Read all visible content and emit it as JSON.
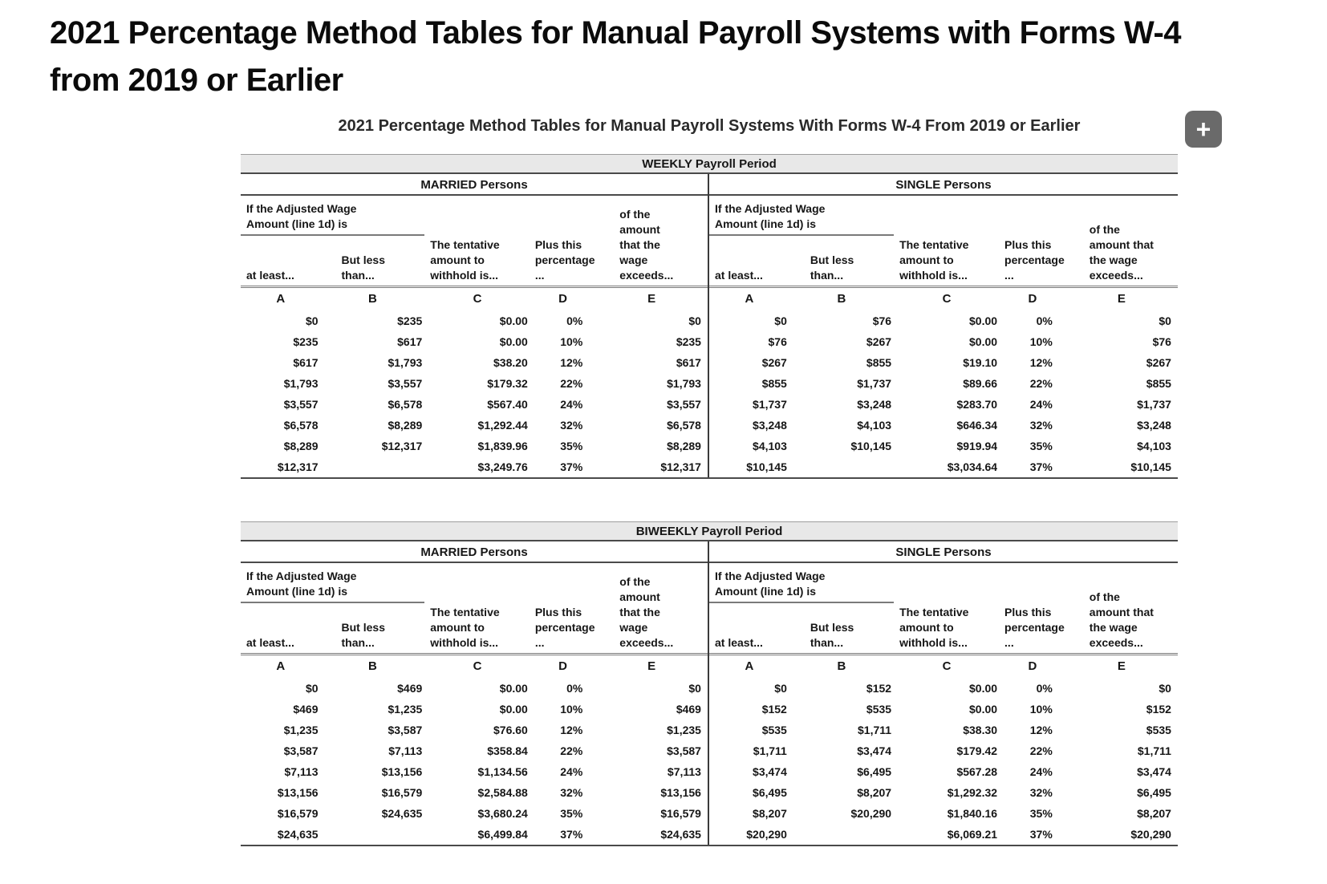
{
  "page": {
    "title_line1": "2021 Percentage Method Tables for Manual Payroll Systems with Forms W-4",
    "title_line2": "from 2019 or Earlier"
  },
  "figure": {
    "caption": "2021 Percentage Method Tables for Manual Payroll Systems With Forms W-4 From 2019 or Earlier",
    "zoom_button_glyph": "+"
  },
  "table_labels": {
    "wage_header": "If the Adjusted Wage\nAmount (line 1d) is",
    "col_a": "at least...",
    "col_b": "But less\nthan...",
    "col_c": "The tentative\namount to\nwithhold is...",
    "col_d": "Plus this\npercentage\n...",
    "col_e_married": "of the\namount\nthat the\nwage\nexceeds...",
    "col_e_single": "of the\namount that\nthe wage\nexceeds...",
    "letters": [
      "A",
      "B",
      "C",
      "D",
      "E"
    ]
  },
  "colors": {
    "band_bg": "#e8e8e8",
    "rule_dark": "#4a4a4a",
    "rule_mid": "#7a7a7a",
    "zoom_button_bg": "#6a6a6a",
    "text": "#161616"
  },
  "tables": [
    {
      "period": "WEEKLY Payroll Period",
      "married": {
        "label": "MARRIED Persons",
        "rows": [
          [
            "$0",
            "$235",
            "$0.00",
            "0%",
            "$0"
          ],
          [
            "$235",
            "$617",
            "$0.00",
            "10%",
            "$235"
          ],
          [
            "$617",
            "$1,793",
            "$38.20",
            "12%",
            "$617"
          ],
          [
            "$1,793",
            "$3,557",
            "$179.32",
            "22%",
            "$1,793"
          ],
          [
            "$3,557",
            "$6,578",
            "$567.40",
            "24%",
            "$3,557"
          ],
          [
            "$6,578",
            "$8,289",
            "$1,292.44",
            "32%",
            "$6,578"
          ],
          [
            "$8,289",
            "$12,317",
            "$1,839.96",
            "35%",
            "$8,289"
          ],
          [
            "$12,317",
            "",
            "$3,249.76",
            "37%",
            "$12,317"
          ]
        ]
      },
      "single": {
        "label": "SINGLE Persons",
        "rows": [
          [
            "$0",
            "$76",
            "$0.00",
            "0%",
            "$0"
          ],
          [
            "$76",
            "$267",
            "$0.00",
            "10%",
            "$76"
          ],
          [
            "$267",
            "$855",
            "$19.10",
            "12%",
            "$267"
          ],
          [
            "$855",
            "$1,737",
            "$89.66",
            "22%",
            "$855"
          ],
          [
            "$1,737",
            "$3,248",
            "$283.70",
            "24%",
            "$1,737"
          ],
          [
            "$3,248",
            "$4,103",
            "$646.34",
            "32%",
            "$3,248"
          ],
          [
            "$4,103",
            "$10,145",
            "$919.94",
            "35%",
            "$4,103"
          ],
          [
            "$10,145",
            "",
            "$3,034.64",
            "37%",
            "$10,145"
          ]
        ]
      }
    },
    {
      "period": "BIWEEKLY Payroll Period",
      "married": {
        "label": "MARRIED Persons",
        "rows": [
          [
            "$0",
            "$469",
            "$0.00",
            "0%",
            "$0"
          ],
          [
            "$469",
            "$1,235",
            "$0.00",
            "10%",
            "$469"
          ],
          [
            "$1,235",
            "$3,587",
            "$76.60",
            "12%",
            "$1,235"
          ],
          [
            "$3,587",
            "$7,113",
            "$358.84",
            "22%",
            "$3,587"
          ],
          [
            "$7,113",
            "$13,156",
            "$1,134.56",
            "24%",
            "$7,113"
          ],
          [
            "$13,156",
            "$16,579",
            "$2,584.88",
            "32%",
            "$13,156"
          ],
          [
            "$16,579",
            "$24,635",
            "$3,680.24",
            "35%",
            "$16,579"
          ],
          [
            "$24,635",
            "",
            "$6,499.84",
            "37%",
            "$24,635"
          ]
        ]
      },
      "single": {
        "label": "SINGLE Persons",
        "rows": [
          [
            "$0",
            "$152",
            "$0.00",
            "0%",
            "$0"
          ],
          [
            "$152",
            "$535",
            "$0.00",
            "10%",
            "$152"
          ],
          [
            "$535",
            "$1,711",
            "$38.30",
            "12%",
            "$535"
          ],
          [
            "$1,711",
            "$3,474",
            "$179.42",
            "22%",
            "$1,711"
          ],
          [
            "$3,474",
            "$6,495",
            "$567.28",
            "24%",
            "$3,474"
          ],
          [
            "$6,495",
            "$8,207",
            "$1,292.32",
            "32%",
            "$6,495"
          ],
          [
            "$8,207",
            "$20,290",
            "$1,840.16",
            "35%",
            "$8,207"
          ],
          [
            "$20,290",
            "",
            "$6,069.21",
            "37%",
            "$20,290"
          ]
        ]
      }
    }
  ]
}
